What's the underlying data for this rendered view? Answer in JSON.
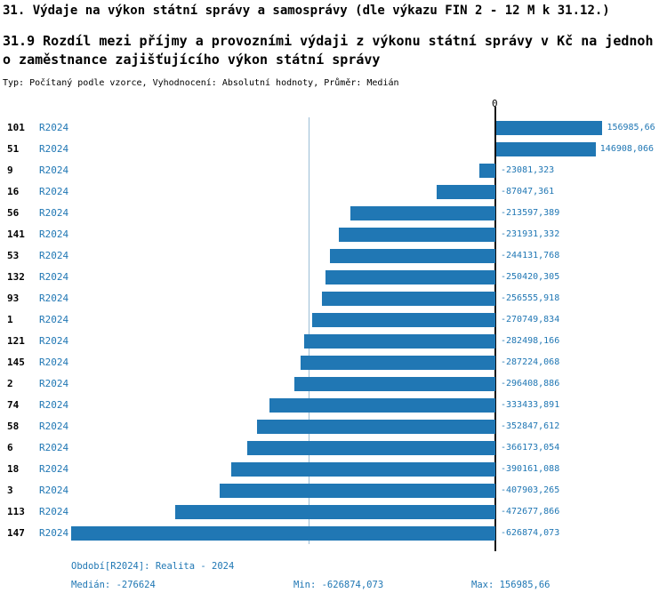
{
  "title_line1": "31. Výdaje na výkon státní správy a samosprávy (dle výkazu FIN 2 - 12 M k 31.12.)",
  "title_line2": "31.9 Rozdíl mezi příjmy a provozními výdaji z výkonu státní správy v Kč na jednoho zaměstnance zajišťujícího výkon státní správy",
  "subtitle": "Typ: Počítaný podle vzorce, Vyhodnocení: Absolutní hodnoty, Průměr: Medián",
  "axis": {
    "zero_label": "0"
  },
  "chart_data": {
    "type": "bar",
    "orientation": "horizontal",
    "bar_color": "#2077b4",
    "series_label": "R2024",
    "categories": [
      "101",
      "51",
      "9",
      "16",
      "56",
      "141",
      "53",
      "132",
      "93",
      "1",
      "121",
      "145",
      "2",
      "74",
      "58",
      "6",
      "18",
      "3",
      "113",
      "147"
    ],
    "values": [
      156985.66,
      146908.066,
      -23081.323,
      -87047.361,
      -213597.389,
      -231931.332,
      -244131.768,
      -250420.305,
      -256555.918,
      -270749.834,
      -282498.166,
      -287224.068,
      -296408.886,
      -333433.891,
      -352847.612,
      -366173.054,
      -390161.088,
      -407903.265,
      -472677.866,
      -626874.073
    ],
    "value_labels": [
      "156985,66",
      "146908,066",
      "-23081,323",
      "-87047,361",
      "-213597,389",
      "-231931,332",
      "-244131,768",
      "-250420,305",
      "-256555,918",
      "-270749,834",
      "-282498,166",
      "-287224,068",
      "-296408,886",
      "-333433,891",
      "-352847,612",
      "-366173,054",
      "-390161,088",
      "-407903,265",
      "-472677,866",
      "-626874,073"
    ],
    "median": -276624,
    "xlim": [
      -626874.073,
      156985.66
    ],
    "grid": false,
    "legend_position": "none"
  },
  "footer": {
    "period": "Období[R2024]: Realita - 2024",
    "median": "Medián: -276624",
    "min": "Min: -626874,073",
    "max": "Max: 156985,66"
  }
}
